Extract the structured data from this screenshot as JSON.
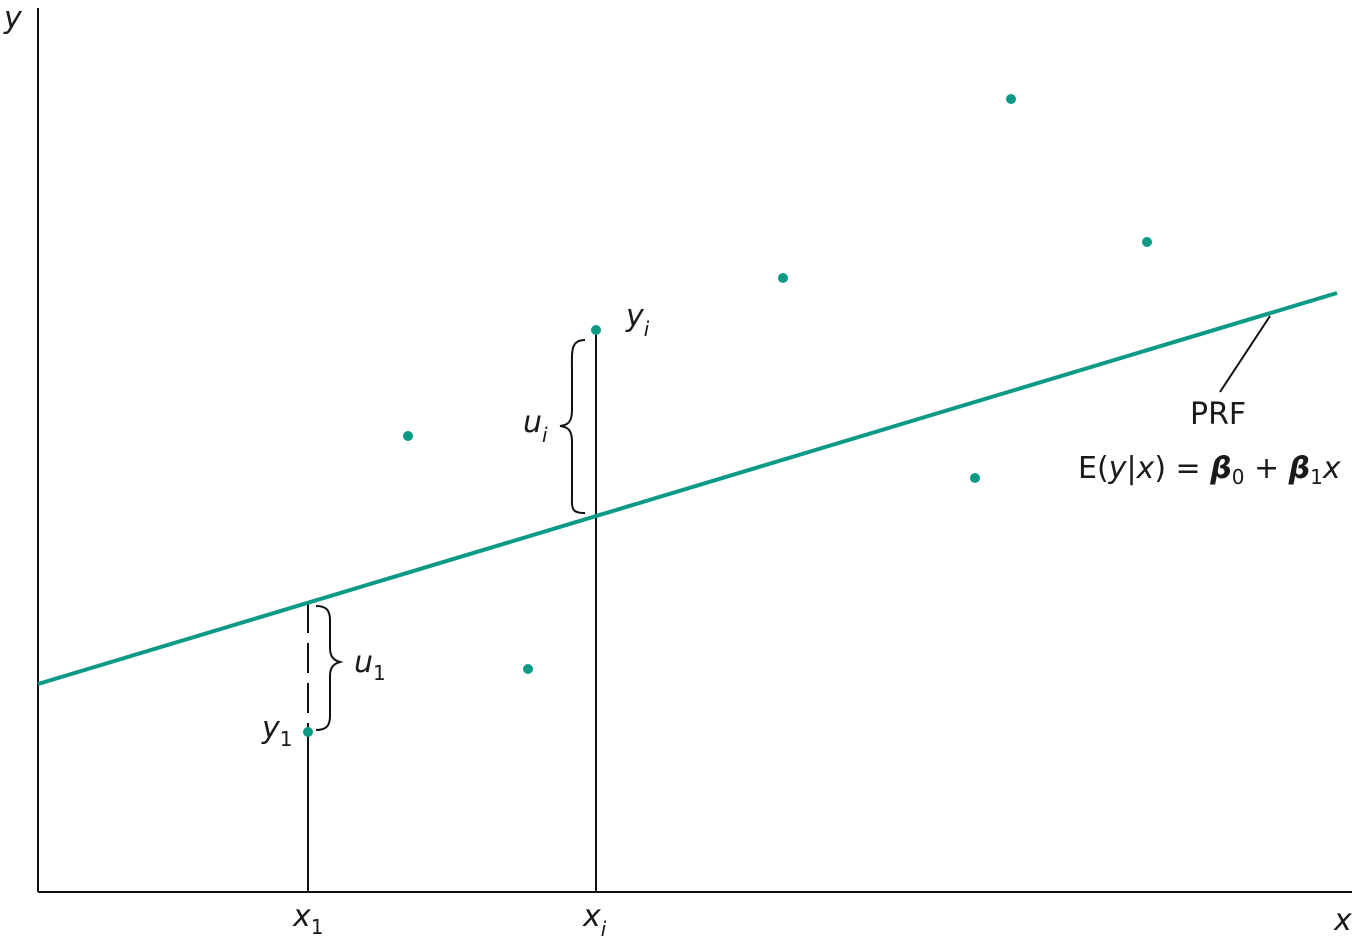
{
  "colors": {
    "line": "#0a9a86",
    "point": "#0a9a86",
    "axis": "#111111",
    "text": "#1a1a1a"
  },
  "axes": {
    "y_label": "y",
    "x_label": "x"
  },
  "ticks": {
    "x1": {
      "main": "x",
      "sub": "1"
    },
    "xi": {
      "main": "x",
      "sub": "i"
    }
  },
  "points_labels": {
    "y1": {
      "main": "y",
      "sub": "1"
    },
    "yi": {
      "main": "y",
      "sub": "i"
    }
  },
  "errors": {
    "u1": {
      "main": "u",
      "sub": "1"
    },
    "ui": {
      "main": "u",
      "sub": "i"
    }
  },
  "prf": {
    "name": "PRF",
    "eq_prefix": "E(",
    "eq_y": "y",
    "eq_bar": "|",
    "eq_x": "x",
    "eq_mid": ") = ",
    "beta": "β",
    "sub0": "0",
    "plus": " + ",
    "sub1": "1",
    "eq_tail_x": "x"
  }
}
